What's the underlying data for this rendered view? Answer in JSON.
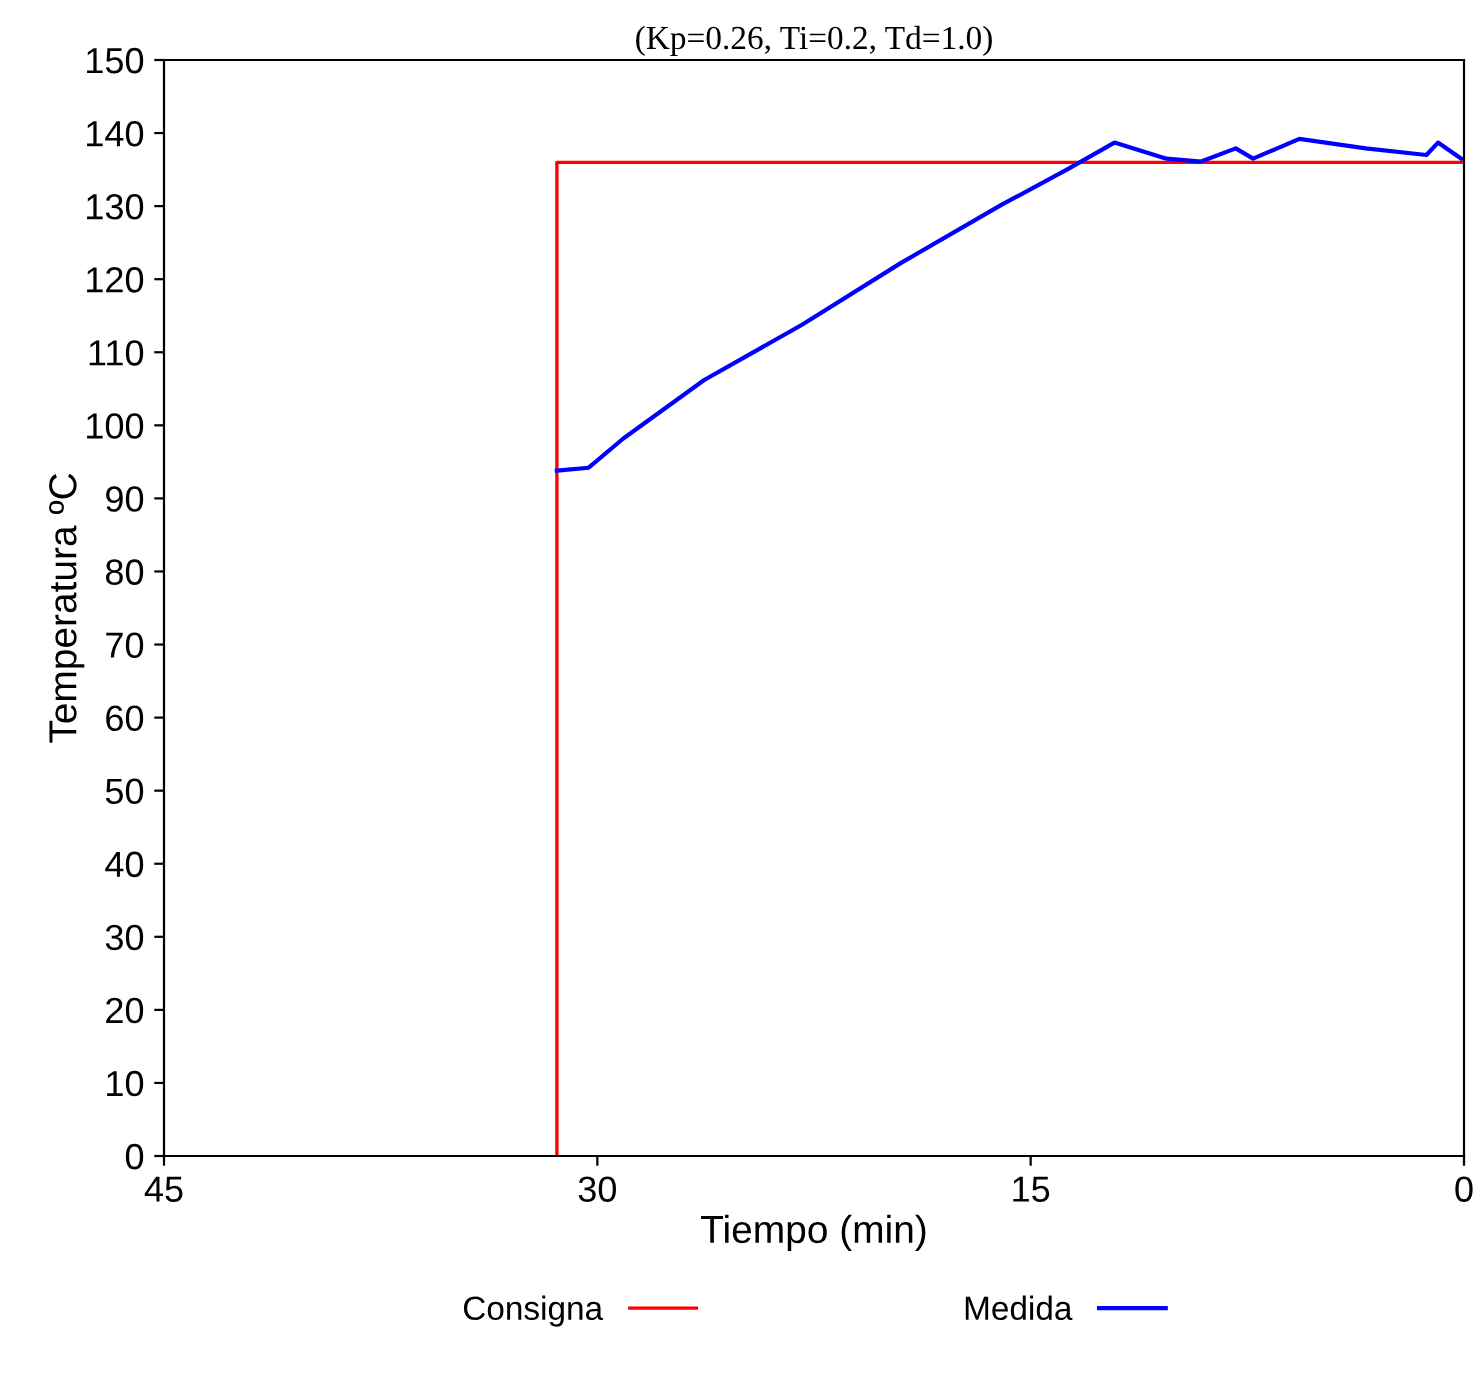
{
  "chart_data": {
    "type": "line",
    "title": "(Kp=0.26, Ti=0.2, Td=1.0)",
    "xlabel": "Tiempo (min)",
    "ylabel": "Temperatura ºC",
    "xlim": [
      45,
      0
    ],
    "xticks": [
      45,
      30,
      15,
      0
    ],
    "ylim": [
      0,
      150
    ],
    "yticks": [
      0,
      10,
      20,
      30,
      40,
      50,
      60,
      70,
      80,
      90,
      100,
      110,
      120,
      130,
      140,
      150
    ],
    "grid": false,
    "legend": "bottom",
    "marker": "none",
    "line_style": "solid",
    "series": [
      {
        "name": "Consigna",
        "color": "#ff0000",
        "x": [
          31.4,
          31.4,
          0
        ],
        "values": [
          0,
          136,
          136
        ]
      },
      {
        "name": "Medida",
        "color": "#0000ff",
        "x": [
          31.4,
          30.3,
          29.1,
          26.3,
          22.9,
          19.5,
          16.0,
          13.7,
          12.1,
          10.3,
          9.1,
          7.9,
          7.3,
          5.7,
          3.4,
          1.3,
          0.9,
          0.1
        ],
        "values": [
          93.8,
          94.2,
          98.2,
          106.2,
          113.8,
          122.2,
          130.2,
          135.1,
          138.7,
          136.5,
          136.1,
          137.9,
          136.5,
          139.2,
          137.9,
          137,
          138.7,
          136.5
        ]
      }
    ]
  }
}
